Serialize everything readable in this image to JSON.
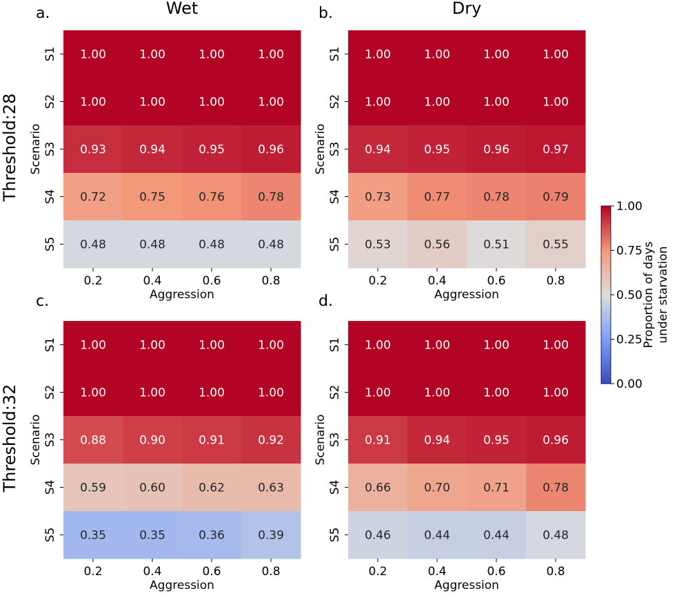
{
  "column_titles": [
    "Wet",
    "Dry"
  ],
  "row_titles": [
    "Threshold:28",
    "Threshold:32"
  ],
  "panel_letters": [
    "a.",
    "b.",
    "c.",
    "d."
  ],
  "colorbar": {
    "label_line1": "Proportion of days",
    "label_line2": "under starvation",
    "ticks": [
      "1.00",
      "0.75",
      "0.50",
      "0.25",
      "0.00"
    ],
    "range": [
      0,
      1
    ],
    "colormap": "coolwarm",
    "low_color": "#3b4cc0",
    "mid_color": "#dddddd",
    "high_color": "#b40426"
  },
  "chart_data": [
    {
      "type": "heatmap",
      "panel": "a.",
      "title": "Wet",
      "row_group": "Threshold:28",
      "xlabel": "Aggression",
      "ylabel": "Scenario",
      "x": [
        "0.2",
        "0.4",
        "0.6",
        "0.8"
      ],
      "y": [
        "S1",
        "S2",
        "S3",
        "S4",
        "S5"
      ],
      "values": [
        [
          1.0,
          1.0,
          1.0,
          1.0
        ],
        [
          1.0,
          1.0,
          1.0,
          1.0
        ],
        [
          0.93,
          0.94,
          0.95,
          0.96
        ],
        [
          0.72,
          0.75,
          0.76,
          0.78
        ],
        [
          0.48,
          0.48,
          0.48,
          0.48
        ]
      ],
      "labels": [
        [
          "1.00",
          "1.00",
          "1.00",
          "1.00"
        ],
        [
          "1.00",
          "1.00",
          "1.00",
          "1.00"
        ],
        [
          "0.93",
          "0.94",
          "0.95",
          "0.96"
        ],
        [
          "0.72",
          "0.75",
          "0.76",
          "0.78"
        ],
        [
          "0.48",
          "0.48",
          "0.48",
          "0.48"
        ]
      ]
    },
    {
      "type": "heatmap",
      "panel": "b.",
      "title": "Dry",
      "row_group": "Threshold:28",
      "xlabel": "Aggression",
      "ylabel": "Scenario",
      "x": [
        "0.2",
        "0.4",
        "0.6",
        "0.8"
      ],
      "y": [
        "S1",
        "S2",
        "S3",
        "S4",
        "S5"
      ],
      "values": [
        [
          1.0,
          1.0,
          1.0,
          1.0
        ],
        [
          1.0,
          1.0,
          1.0,
          1.0
        ],
        [
          0.94,
          0.95,
          0.96,
          0.97
        ],
        [
          0.73,
          0.77,
          0.78,
          0.79
        ],
        [
          0.53,
          0.56,
          0.51,
          0.55
        ]
      ],
      "labels": [
        [
          "1.00",
          "1.00",
          "1.00",
          "1.00"
        ],
        [
          "1.00",
          "1.00",
          "1.00",
          "1.00"
        ],
        [
          "0.94",
          "0.95",
          "0.96",
          "0.97"
        ],
        [
          "0.73",
          "0.77",
          "0.78",
          "0.79"
        ],
        [
          "0.53",
          "0.56",
          "0.51",
          "0.55"
        ]
      ]
    },
    {
      "type": "heatmap",
      "panel": "c.",
      "title": "",
      "row_group": "Threshold:32",
      "xlabel": "Aggression",
      "ylabel": "Scenario",
      "x": [
        "0.2",
        "0.4",
        "0.6",
        "0.8"
      ],
      "y": [
        "S1",
        "S2",
        "S3",
        "S4",
        "S5"
      ],
      "values": [
        [
          1.0,
          1.0,
          1.0,
          1.0
        ],
        [
          1.0,
          1.0,
          1.0,
          1.0
        ],
        [
          0.88,
          0.9,
          0.91,
          0.92
        ],
        [
          0.59,
          0.6,
          0.62,
          0.63
        ],
        [
          0.35,
          0.35,
          0.36,
          0.39
        ]
      ],
      "labels": [
        [
          "1.00",
          "1.00",
          "1.00",
          "1.00"
        ],
        [
          "1.00",
          "1.00",
          "1.00",
          "1.00"
        ],
        [
          "0.88",
          "0.90",
          "0.91",
          "0.92"
        ],
        [
          "0.59",
          "0.60",
          "0.62",
          "0.63"
        ],
        [
          "0.35",
          "0.35",
          "0.36",
          "0.39"
        ]
      ]
    },
    {
      "type": "heatmap",
      "panel": "d.",
      "title": "",
      "row_group": "Threshold:32",
      "xlabel": "Aggression",
      "ylabel": "Scenario",
      "x": [
        "0.2",
        "0.4",
        "0.6",
        "0.8"
      ],
      "y": [
        "S1",
        "S2",
        "S3",
        "S4",
        "S5"
      ],
      "values": [
        [
          1.0,
          1.0,
          1.0,
          1.0
        ],
        [
          1.0,
          1.0,
          1.0,
          1.0
        ],
        [
          0.91,
          0.94,
          0.95,
          0.96
        ],
        [
          0.66,
          0.7,
          0.71,
          0.78
        ],
        [
          0.46,
          0.44,
          0.44,
          0.48
        ]
      ],
      "labels": [
        [
          "1.00",
          "1.00",
          "1.00",
          "1.00"
        ],
        [
          "1.00",
          "1.00",
          "1.00",
          "1.00"
        ],
        [
          "0.91",
          "0.94",
          "0.95",
          "0.96"
        ],
        [
          "0.66",
          "0.70",
          "0.71",
          "0.78"
        ],
        [
          "0.46",
          "0.44",
          "0.44",
          "0.48"
        ]
      ]
    }
  ]
}
